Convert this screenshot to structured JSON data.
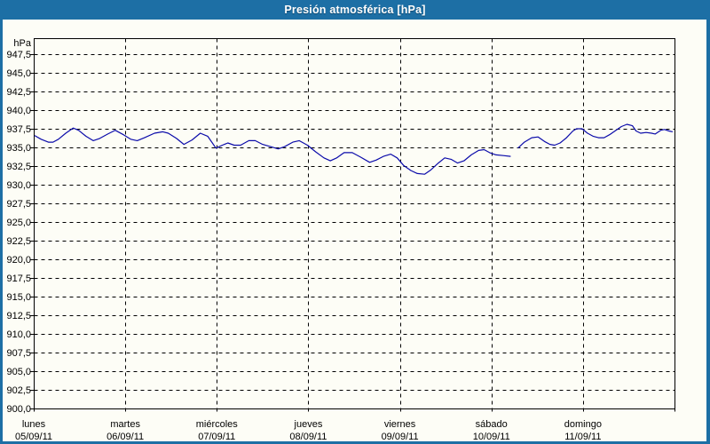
{
  "window": {
    "title": "Presión atmosférica [hPa]"
  },
  "colors": {
    "frame": "#1d6fa5",
    "title_bg": "#1d6fa5",
    "title_text": "#ffffff",
    "plot_bg": "#fdfdf6",
    "grid": "#000000",
    "axis": "#000000",
    "line": "#0b0baa",
    "label": "#000000"
  },
  "chart_data": {
    "type": "line",
    "title": "Presión atmosférica [hPa]",
    "xlabel": "",
    "ylabel": "hPa",
    "ylim": [
      900.0,
      950.0
    ],
    "grid": true,
    "legend": "none",
    "y_axis": {
      "unit": "hPa",
      "min": 900.0,
      "max": 947.5,
      "tick_step": 2.5,
      "tick_labels_top_to_bottom": [
        "947,5",
        "945,0",
        "942,5",
        "940,0",
        "937,5",
        "935,0",
        "932,5",
        "930,0",
        "927,5",
        "925,0",
        "922,5",
        "920,0",
        "917,5",
        "915,0",
        "912,5",
        "910,0",
        "907,5",
        "905,0",
        "902,5",
        "900,0"
      ]
    },
    "x_axis": {
      "days": [
        {
          "name": "lunes",
          "date": "05/09/11"
        },
        {
          "name": "martes",
          "date": "06/09/11"
        },
        {
          "name": "miércoles",
          "date": "07/09/11"
        },
        {
          "name": "jueves",
          "date": "08/09/11"
        },
        {
          "name": "viernes",
          "date": "09/09/11"
        },
        {
          "name": "sábado",
          "date": "10/09/11"
        },
        {
          "name": "domingo",
          "date": "11/09/11"
        }
      ]
    },
    "series": [
      {
        "name": "Presión atmosférica",
        "units": "hPa",
        "x_units": "days from 05/09/11 00:00",
        "segments": [
          [
            [
              0.01,
              936.6
            ],
            [
              0.08,
              936.1
            ],
            [
              0.16,
              935.7
            ],
            [
              0.21,
              935.7
            ],
            [
              0.27,
              936.1
            ],
            [
              0.35,
              936.9
            ],
            [
              0.43,
              937.6
            ],
            [
              0.49,
              937.3
            ],
            [
              0.57,
              936.5
            ],
            [
              0.65,
              935.9
            ],
            [
              0.72,
              936.2
            ],
            [
              0.81,
              936.8
            ],
            [
              0.89,
              937.3
            ],
            [
              0.98,
              936.7
            ],
            [
              1.06,
              936.1
            ],
            [
              1.13,
              935.9
            ],
            [
              1.21,
              936.3
            ],
            [
              1.32,
              936.9
            ],
            [
              1.41,
              937.1
            ],
            [
              1.47,
              936.9
            ],
            [
              1.56,
              936.2
            ],
            [
              1.64,
              935.4
            ],
            [
              1.73,
              936.0
            ],
            [
              1.82,
              936.9
            ],
            [
              1.9,
              936.5
            ],
            [
              1.99,
              934.9
            ],
            [
              2.06,
              935.3
            ],
            [
              2.12,
              935.6
            ],
            [
              2.19,
              935.3
            ],
            [
              2.26,
              935.3
            ],
            [
              2.35,
              935.9
            ],
            [
              2.42,
              935.9
            ],
            [
              2.5,
              935.4
            ],
            [
              2.59,
              935.1
            ],
            [
              2.67,
              934.8
            ],
            [
              2.74,
              935.1
            ],
            [
              2.83,
              935.7
            ],
            [
              2.9,
              935.9
            ],
            [
              2.99,
              935.3
            ],
            [
              3.08,
              934.4
            ],
            [
              3.17,
              933.6
            ],
            [
              3.24,
              933.2
            ],
            [
              3.31,
              933.6
            ],
            [
              3.39,
              934.3
            ],
            [
              3.48,
              934.3
            ],
            [
              3.57,
              933.7
            ],
            [
              3.67,
              933.0
            ],
            [
              3.74,
              933.3
            ],
            [
              3.82,
              933.8
            ],
            [
              3.9,
              934.1
            ],
            [
              3.97,
              933.6
            ],
            [
              4.04,
              932.6
            ],
            [
              4.12,
              931.9
            ],
            [
              4.19,
              931.5
            ],
            [
              4.27,
              931.4
            ],
            [
              4.34,
              932.0
            ],
            [
              4.42,
              932.9
            ],
            [
              4.49,
              933.6
            ],
            [
              4.56,
              933.4
            ],
            [
              4.63,
              932.9
            ],
            [
              4.7,
              933.2
            ],
            [
              4.78,
              934.0
            ],
            [
              4.86,
              934.6
            ],
            [
              4.92,
              934.7
            ],
            [
              4.98,
              934.3
            ],
            [
              5.05,
              934.0
            ],
            [
              5.13,
              933.9
            ],
            [
              5.21,
              933.8
            ]
          ],
          [
            [
              5.29,
              934.9
            ],
            [
              5.36,
              935.7
            ],
            [
              5.44,
              936.3
            ],
            [
              5.51,
              936.4
            ],
            [
              5.58,
              935.8
            ],
            [
              5.64,
              935.4
            ],
            [
              5.69,
              935.3
            ],
            [
              5.75,
              935.6
            ],
            [
              5.82,
              936.3
            ],
            [
              5.89,
              937.2
            ],
            [
              5.93,
              937.5
            ],
            [
              5.99,
              937.5
            ],
            [
              6.05,
              936.9
            ],
            [
              6.11,
              936.5
            ],
            [
              6.17,
              936.3
            ],
            [
              6.23,
              936.3
            ],
            [
              6.29,
              936.7
            ],
            [
              6.36,
              937.3
            ],
            [
              6.42,
              937.8
            ],
            [
              6.48,
              938.1
            ],
            [
              6.54,
              937.9
            ],
            [
              6.58,
              937.2
            ],
            [
              6.63,
              936.9
            ],
            [
              6.69,
              937.0
            ],
            [
              6.75,
              936.9
            ],
            [
              6.79,
              936.8
            ],
            [
              6.85,
              937.3
            ],
            [
              6.89,
              937.4
            ],
            [
              6.94,
              937.2
            ],
            [
              6.98,
              937.1
            ]
          ]
        ]
      }
    ]
  }
}
